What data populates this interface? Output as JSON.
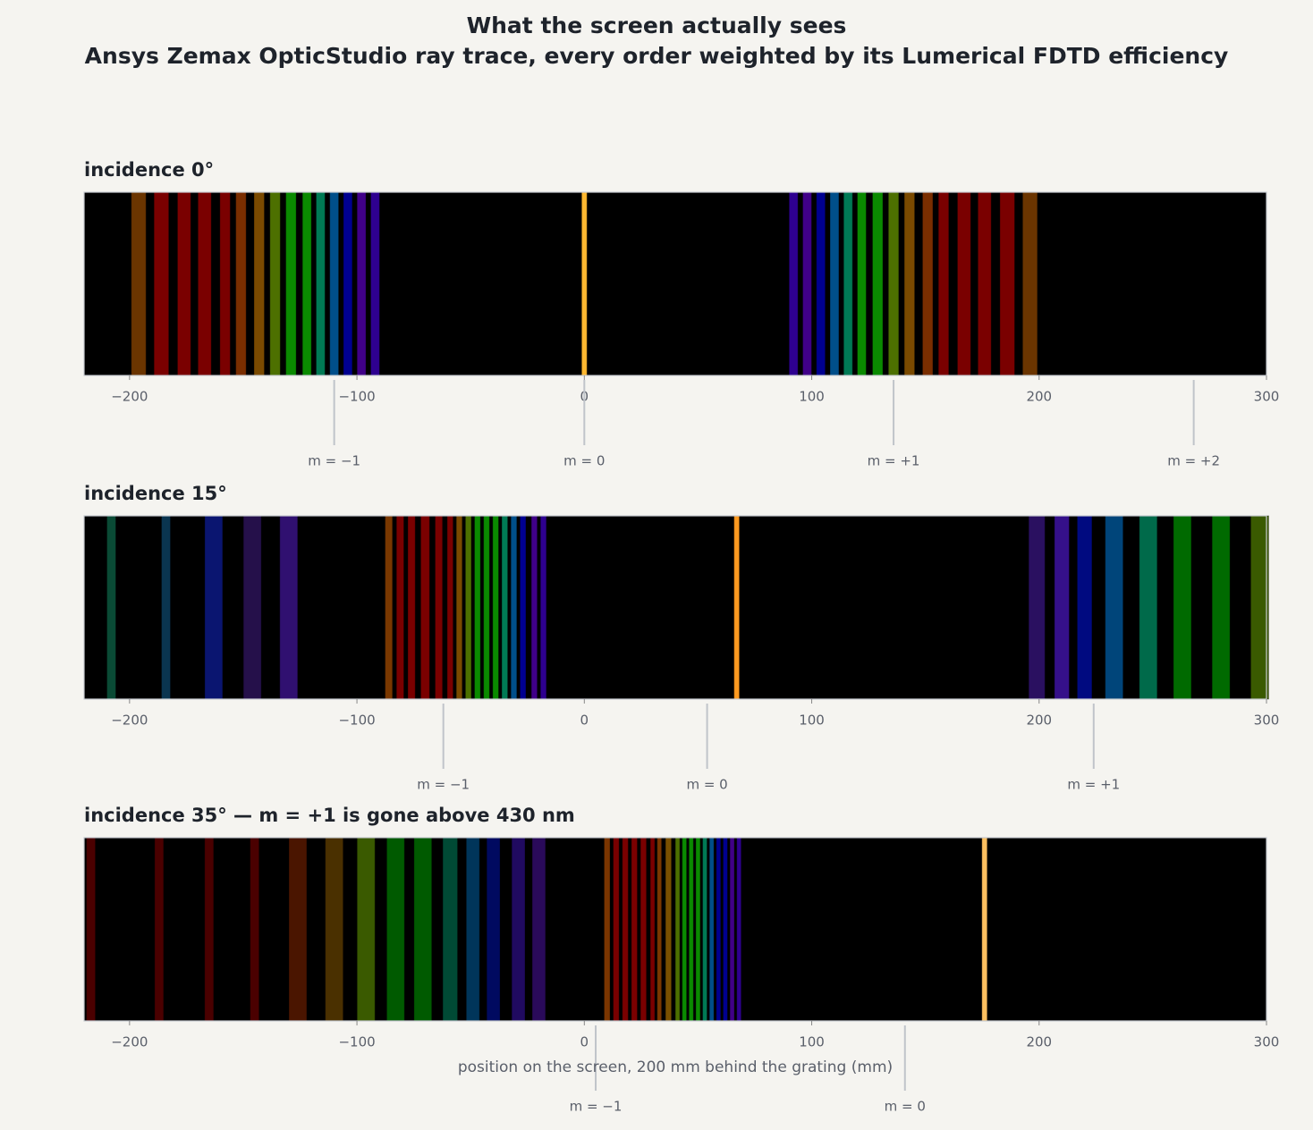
{
  "title": "What the screen actually sees",
  "subtitle": "Ansys Zemax OpticStudio ray trace, every order weighted by its Lumerical FDTD efficiency",
  "chart_data": [
    {
      "type": "spectrum",
      "title": "incidence 0°",
      "xlim": [
        -220,
        300
      ],
      "xticks": [
        {
          "value": -200,
          "label": "−200"
        },
        {
          "value": -100,
          "label": "−100"
        },
        0,
        100,
        200,
        300
      ],
      "bands": {
        "x": [
          -196,
          -186,
          -176,
          -167,
          -158,
          -151,
          -143,
          -136,
          -129,
          -122,
          -116,
          -110,
          -104,
          -98,
          -92,
          0,
          92,
          98,
          104,
          110,
          116,
          122,
          129,
          136,
          143,
          151,
          158,
          167,
          176,
          186,
          196
        ],
        "colors": [
          "#6b3500",
          "#7a0000",
          "#7a0000",
          "#7a0000",
          "#7a0000",
          "#7a2e00",
          "#7a4a00",
          "#4d7000",
          "#0a8a00",
          "#0a8a00",
          "#007a55",
          "#004f8a",
          "#000090",
          "#400088",
          "#2e0090",
          "#ffb830",
          "#2e0090",
          "#400088",
          "#000090",
          "#004f8a",
          "#007a55",
          "#0a8a00",
          "#0a8a00",
          "#4d7000",
          "#7a4a00",
          "#7a2e00",
          "#7a0000",
          "#7a0000",
          "#7a0000",
          "#7a0000",
          "#6b3500"
        ]
      },
      "orders": [
        {
          "label": "m = −1",
          "x": -110
        },
        {
          "label": "m = 0",
          "x": 0
        },
        {
          "label": "m = +1",
          "x": 136
        },
        {
          "label": "m = +2",
          "x": 268
        }
      ]
    },
    {
      "type": "spectrum",
      "title": "incidence 15°",
      "xlim": [
        -220,
        300
      ],
      "xticks": [
        {
          "value": -200,
          "label": "−200"
        },
        {
          "value": -100,
          "label": "−100"
        },
        0,
        100,
        200,
        300
      ],
      "bands": {
        "x": [
          -208,
          -184,
          -163,
          -146,
          -130,
          -86,
          -81,
          -76,
          -70,
          -64,
          -59,
          -55,
          -51,
          -47,
          -43,
          -39,
          -35,
          -31,
          -27,
          -22,
          -18,
          67,
          199,
          210,
          220,
          233,
          248,
          263,
          280,
          297
        ],
        "colors": [
          "#0a4a35",
          "#0a3550",
          "#0a1570",
          "#25104a",
          "#301070",
          "#7a3800",
          "#7a0000",
          "#7a0000",
          "#7a0000",
          "#7a0000",
          "#7a0000",
          "#7a4a00",
          "#4d7000",
          "#0a8a00",
          "#0a8a00",
          "#0a8a00",
          "#007a55",
          "#004f8a",
          "#000090",
          "#400088",
          "#2e0090",
          "#ff9a20",
          "#2a1060",
          "#35108a",
          "#000a80",
          "#00457a",
          "#006a4a",
          "#006a00",
          "#006a00",
          "#3a5a00"
        ]
      },
      "orders": [
        {
          "label": "m = −1",
          "x": -62
        },
        {
          "label": "m = 0",
          "x": 54
        },
        {
          "label": "m = +1",
          "x": 224
        }
      ]
    },
    {
      "type": "spectrum",
      "title": "incidence 35°  —  m = +1 is gone above 430 nm",
      "xlim": [
        -220,
        300
      ],
      "xticks": [
        {
          "value": -200,
          "label": "−200"
        },
        {
          "value": -100,
          "label": "−100"
        },
        0,
        100,
        200,
        300
      ],
      "xlabel": "position on the screen, 200 mm behind the grating  (mm)",
      "bands": {
        "x": [
          -217,
          -187,
          -165,
          -145,
          -126,
          -110,
          -96,
          -83,
          -71,
          -59,
          -49,
          -40,
          -29,
          -20,
          10,
          14,
          18,
          22,
          26,
          30,
          33,
          37,
          41,
          44,
          47,
          50,
          53,
          56,
          59,
          62,
          65,
          68,
          176
        ],
        "colors": [
          "#4a0000",
          "#4a0000",
          "#4a0000",
          "#4a0000",
          "#4a1500",
          "#4a3000",
          "#3a5a00",
          "#005a00",
          "#005a00",
          "#004a35",
          "#00355a",
          "#000a60",
          "#200a60",
          "#2a0a5a",
          "#7a3500",
          "#7a0000",
          "#7a0000",
          "#7a0000",
          "#7a0000",
          "#7a0000",
          "#7a3800",
          "#7a5000",
          "#4d7000",
          "#0a8a00",
          "#0a8a00",
          "#0a8a00",
          "#007a55",
          "#004f8a",
          "#000090",
          "#000090",
          "#400088",
          "#2e0090",
          "#ffc060"
        ]
      },
      "orders": [
        {
          "label": "m = −1",
          "x": 5
        },
        {
          "label": "m = 0",
          "x": 141
        }
      ]
    }
  ]
}
